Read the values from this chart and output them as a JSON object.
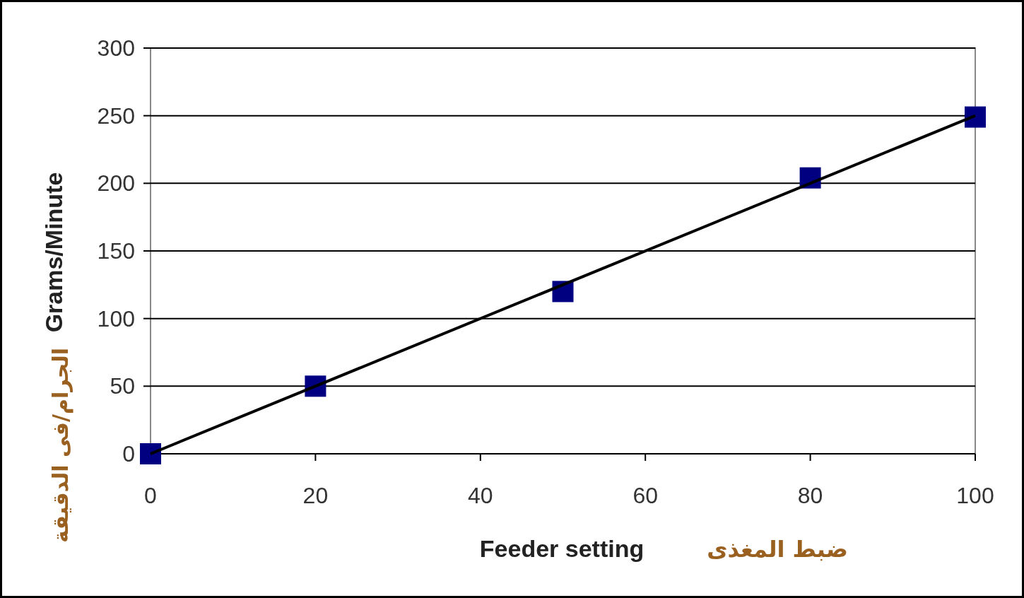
{
  "chart_data": {
    "type": "scatter",
    "xlabel": "Feeder setting",
    "ylabel": "Grams/Minute",
    "annotations": [
      "ضبط المغذى",
      "الجرام/فى الدقيقة"
    ],
    "series": [
      {
        "color": "#000080",
        "marker": "square",
        "x": [
          0,
          20,
          50,
          80,
          100
        ],
        "values": [
          0,
          50,
          120,
          204,
          249
        ]
      },
      {
        "type": "line",
        "color": "#000000",
        "marker": "none",
        "x": [
          0,
          100
        ],
        "values": [
          0,
          250
        ]
      }
    ],
    "xlim": [
      0,
      100
    ],
    "ylim": [
      0,
      300
    ],
    "xticks": [
      0,
      20,
      40,
      60,
      80,
      100
    ],
    "yticks": [
      0,
      50,
      100,
      150,
      200,
      250,
      300
    ],
    "grid": "y"
  }
}
